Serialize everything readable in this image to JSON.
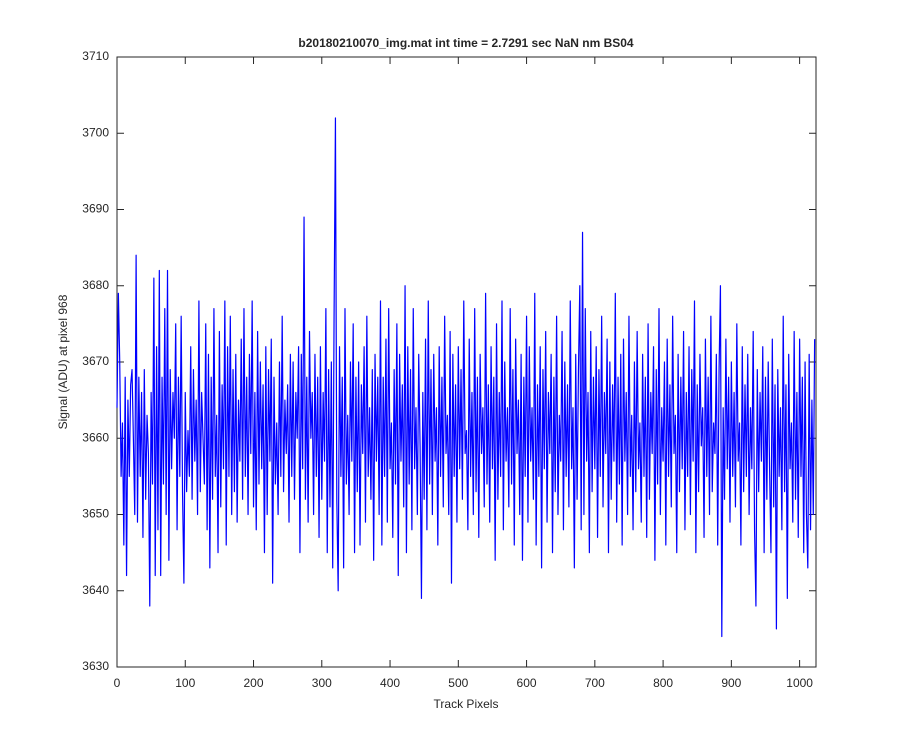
{
  "chart_data": {
    "type": "line",
    "title": "b20180210070_img.mat int time = 2.7291 sec  NaN nm BS04",
    "x_label": "Track Pixels",
    "y_label": "Signal (ADU) at pixel 968",
    "color": "#0000ff",
    "xlim": [
      0,
      1024
    ],
    "xticks": [
      0,
      100,
      200,
      300,
      400,
      500,
      600,
      700,
      800,
      900,
      1000
    ],
    "ylim": [
      3630,
      3710
    ],
    "yticks": [
      3630,
      3640,
      3650,
      3660,
      3670,
      3680,
      3690,
      3700,
      3710
    ],
    "x": [
      0,
      2,
      4,
      6,
      8,
      10,
      12,
      14,
      16,
      18,
      20,
      22,
      24,
      26,
      28,
      30,
      32,
      34,
      36,
      38,
      40,
      42,
      44,
      46,
      48,
      50,
      52,
      54,
      56,
      58,
      60,
      62,
      64,
      66,
      68,
      70,
      72,
      74,
      76,
      78,
      80,
      82,
      84,
      86,
      88,
      90,
      92,
      94,
      96,
      98,
      100,
      102,
      104,
      106,
      108,
      110,
      112,
      114,
      116,
      118,
      120,
      122,
      124,
      126,
      128,
      130,
      132,
      134,
      136,
      138,
      140,
      142,
      144,
      146,
      148,
      150,
      152,
      154,
      156,
      158,
      160,
      162,
      164,
      166,
      168,
      170,
      172,
      174,
      176,
      178,
      180,
      182,
      184,
      186,
      188,
      190,
      192,
      194,
      196,
      198,
      200,
      202,
      204,
      206,
      208,
      210,
      212,
      214,
      216,
      218,
      220,
      222,
      224,
      226,
      228,
      230,
      232,
      234,
      236,
      238,
      240,
      242,
      244,
      246,
      248,
      250,
      252,
      254,
      256,
      258,
      260,
      262,
      264,
      266,
      268,
      270,
      272,
      274,
      276,
      278,
      280,
      282,
      284,
      286,
      288,
      290,
      292,
      294,
      296,
      298,
      300,
      302,
      304,
      306,
      308,
      310,
      312,
      314,
      316,
      318,
      320,
      322,
      324,
      326,
      328,
      330,
      332,
      334,
      336,
      338,
      340,
      342,
      344,
      346,
      348,
      350,
      352,
      354,
      356,
      358,
      360,
      362,
      364,
      366,
      368,
      370,
      372,
      374,
      376,
      378,
      380,
      382,
      384,
      386,
      388,
      390,
      392,
      394,
      396,
      398,
      400,
      402,
      404,
      406,
      408,
      410,
      412,
      414,
      416,
      418,
      420,
      422,
      424,
      426,
      428,
      430,
      432,
      434,
      436,
      438,
      440,
      442,
      444,
      446,
      448,
      450,
      452,
      454,
      456,
      458,
      460,
      462,
      464,
      466,
      468,
      470,
      472,
      474,
      476,
      478,
      480,
      482,
      484,
      486,
      488,
      490,
      492,
      494,
      496,
      498,
      500,
      502,
      504,
      506,
      508,
      510,
      512,
      514,
      516,
      518,
      520,
      522,
      524,
      526,
      528,
      530,
      532,
      534,
      536,
      538,
      540,
      542,
      544,
      546,
      548,
      550,
      552,
      554,
      556,
      558,
      560,
      562,
      564,
      566,
      568,
      570,
      572,
      574,
      576,
      578,
      580,
      582,
      584,
      586,
      588,
      590,
      592,
      594,
      596,
      598,
      600,
      602,
      604,
      606,
      608,
      610,
      612,
      614,
      616,
      618,
      620,
      622,
      624,
      626,
      628,
      630,
      632,
      634,
      636,
      638,
      640,
      642,
      644,
      646,
      648,
      650,
      652,
      654,
      656,
      658,
      660,
      662,
      664,
      666,
      668,
      670,
      672,
      674,
      676,
      678,
      680,
      682,
      684,
      686,
      688,
      690,
      692,
      694,
      696,
      698,
      700,
      702,
      704,
      706,
      708,
      710,
      712,
      714,
      716,
      718,
      720,
      722,
      724,
      726,
      728,
      730,
      732,
      734,
      736,
      738,
      740,
      742,
      744,
      746,
      748,
      750,
      752,
      754,
      756,
      758,
      760,
      762,
      764,
      766,
      768,
      770,
      772,
      774,
      776,
      778,
      780,
      782,
      784,
      786,
      788,
      790,
      792,
      794,
      796,
      798,
      800,
      802,
      804,
      806,
      808,
      810,
      812,
      814,
      816,
      818,
      820,
      822,
      824,
      826,
      828,
      830,
      832,
      834,
      836,
      838,
      840,
      842,
      844,
      846,
      848,
      850,
      852,
      854,
      856,
      858,
      860,
      862,
      864,
      866,
      868,
      870,
      872,
      874,
      876,
      878,
      880,
      882,
      884,
      886,
      888,
      890,
      892,
      894,
      896,
      898,
      900,
      902,
      904,
      906,
      908,
      910,
      912,
      914,
      916,
      918,
      920,
      922,
      924,
      926,
      928,
      930,
      932,
      934,
      936,
      938,
      940,
      942,
      944,
      946,
      948,
      950,
      952,
      954,
      956,
      958,
      960,
      962,
      964,
      966,
      968,
      970,
      972,
      974,
      976,
      978,
      980,
      982,
      984,
      986,
      988,
      990,
      992,
      994,
      996,
      998,
      1000,
      1002,
      1004,
      1006,
      1008,
      1010,
      1012,
      1014,
      1016,
      1018,
      1020,
      1022
    ],
    "values": [
      3664,
      3679,
      3670,
      3655,
      3662,
      3646,
      3668,
      3642,
      3665,
      3655,
      3667,
      3669,
      3660,
      3650,
      3684,
      3649,
      3668,
      3655,
      3666,
      3647,
      3669,
      3652,
      3663,
      3658,
      3638,
      3666,
      3654,
      3681,
      3642,
      3672,
      3648,
      3682,
      3642,
      3668,
      3654,
      3677,
      3650,
      3682,
      3644,
      3669,
      3656,
      3666,
      3660,
      3675,
      3648,
      3668,
      3655,
      3676,
      3653,
      3641,
      3666,
      3653,
      3661,
      3655,
      3672,
      3652,
      3669,
      3657,
      3665,
      3650,
      3678,
      3653,
      3666,
      3660,
      3654,
      3675,
      3648,
      3671,
      3643,
      3668,
      3652,
      3677,
      3655,
      3663,
      3645,
      3674,
      3651,
      3667,
      3656,
      3678,
      3646,
      3672,
      3655,
      3676,
      3650,
      3669,
      3653,
      3671,
      3649,
      3665,
      3657,
      3673,
      3652,
      3677,
      3655,
      3668,
      3650,
      3671,
      3658,
      3678,
      3651,
      3666,
      3648,
      3674,
      3654,
      3670,
      3656,
      3667,
      3645,
      3672,
      3650,
      3669,
      3657,
      3673,
      3641,
      3668,
      3654,
      3662,
      3650,
      3670,
      3655,
      3676,
      3653,
      3665,
      3658,
      3667,
      3649,
      3671,
      3655,
      3670,
      3652,
      3666,
      3660,
      3672,
      3645,
      3671,
      3656,
      3689,
      3652,
      3668,
      3649,
      3674,
      3660,
      3666,
      3650,
      3671,
      3655,
      3668,
      3647,
      3672,
      3652,
      3666,
      3657,
      3677,
      3645,
      3669,
      3651,
      3670,
      3643,
      3676,
      3702,
      3652,
      3640,
      3672,
      3655,
      3668,
      3643,
      3677,
      3654,
      3663,
      3650,
      3670,
      3657,
      3675,
      3645,
      3668,
      3653,
      3670,
      3646,
      3667,
      3658,
      3672,
      3649,
      3676,
      3655,
      3664,
      3652,
      3669,
      3644,
      3671,
      3657,
      3668,
      3650,
      3678,
      3646,
      3668,
      3655,
      3673,
      3649,
      3677,
      3656,
      3662,
      3647,
      3669,
      3654,
      3675,
      3642,
      3671,
      3657,
      3667,
      3651,
      3680,
      3645,
      3672,
      3654,
      3669,
      3648,
      3677,
      3656,
      3664,
      3650,
      3671,
      3659,
      3639,
      3666,
      3652,
      3673,
      3648,
      3678,
      3654,
      3669,
      3650,
      3671,
      3657,
      3664,
      3646,
      3672,
      3655,
      3668,
      3651,
      3676,
      3658,
      3663,
      3650,
      3674,
      3641,
      3671,
      3655,
      3667,
      3649,
      3672,
      3656,
      3669,
      3652,
      3678,
      3658,
      3661,
      3648,
      3673,
      3655,
      3666,
      3650,
      3677,
      3653,
      3668,
      3647,
      3671,
      3658,
      3664,
      3651,
      3679,
      3654,
      3667,
      3649,
      3672,
      3656,
      3668,
      3644,
      3675,
      3652,
      3666,
      3655,
      3678,
      3648,
      3670,
      3657,
      3664,
      3651,
      3677,
      3654,
      3669,
      3646,
      3673,
      3658,
      3665,
      3650,
      3671,
      3644,
      3668,
      3655,
      3676,
      3649,
      3672,
      3657,
      3664,
      3652,
      3679,
      3646,
      3667,
      3655,
      3672,
      3643,
      3669,
      3656,
      3674,
      3649,
      3666,
      3658,
      3671,
      3645,
      3668,
      3653,
      3676,
      3650,
      3663,
      3657,
      3674,
      3648,
      3670,
      3655,
      3667,
      3651,
      3678,
      3656,
      3664,
      3643,
      3671,
      3652,
      3669,
      3680,
      3648,
      3687,
      3650,
      3677,
      3657,
      3666,
      3645,
      3674,
      3653,
      3668,
      3656,
      3672,
      3647,
      3669,
      3655,
      3676,
      3651,
      3666,
      3658,
      3673,
      3645,
      3670,
      3652,
      3667,
      3657,
      3679,
      3649,
      3668,
      3654,
      3671,
      3646,
      3673,
      3657,
      3666,
      3650,
      3676,
      3655,
      3663,
      3648,
      3670,
      3653,
      3674,
      3656,
      3662,
      3649,
      3671,
      3655,
      3668,
      3647,
      3675,
      3652,
      3666,
      3658,
      3672,
      3644,
      3669,
      3654,
      3677,
      3650,
      3664,
      3657,
      3670,
      3646,
      3673,
      3655,
      3667,
      3651,
      3676,
      3658,
      3663,
      3645,
      3671,
      3653,
      3668,
      3656,
      3674,
      3648,
      3666,
      3655,
      3672,
      3650,
      3669,
      3657,
      3678,
      3645,
      3667,
      3653,
      3671,
      3659,
      3664,
      3647,
      3673,
      3655,
      3668,
      3650,
      3676,
      3653,
      3662,
      3658,
      3671,
      3646,
      3669,
      3680,
      3634,
      3664,
      3652,
      3673,
      3656,
      3668,
      3649,
      3670,
      3655,
      3666,
      3651,
      3675,
      3657,
      3662,
      3646,
      3672,
      3653,
      3667,
      3655,
      3671,
      3650,
      3664,
      3656,
      3674,
      3648,
      3638,
      3669,
      3653,
      3666,
      3657,
      3672,
      3645,
      3668,
      3652,
      3670,
      3656,
      3645,
      3673,
      3651,
      3667,
      3635,
      3669,
      3655,
      3664,
      3648,
      3676,
      3653,
      3667,
      3639,
      3671,
      3656,
      3662,
      3649,
      3674,
      3652,
      3666,
      3647,
      3673,
      3655,
      3668,
      3645,
      3670,
      3650,
      3643,
      3671,
      3648,
      3665,
      3650,
      3673
    ]
  }
}
